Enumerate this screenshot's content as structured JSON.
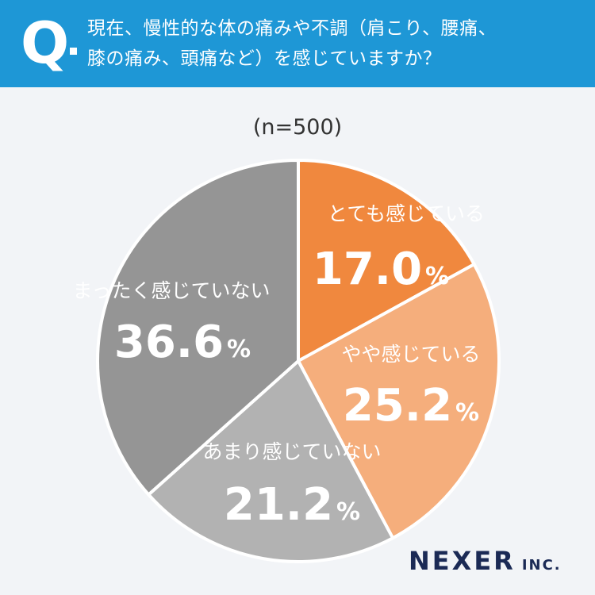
{
  "header": {
    "q_mark": "Q",
    "question_line1": "現在、慢性的な体の痛みや不調（肩こり、腰痛、",
    "question_line2": "膝の痛み、頭痛など）を感じていますか？"
  },
  "sample_size": "(n=500)",
  "chart_data": {
    "type": "pie",
    "title": "現在、慢性的な体の痛みや不調（肩こり、腰痛、膝の痛み、頭痛など）を感じていますか？",
    "categories": [
      "とても感じている",
      "やや感じている",
      "あまり感じていない",
      "まったく感じていない"
    ],
    "values": [
      17.0,
      25.2,
      21.2,
      36.6
    ],
    "value_labels": [
      "17.0",
      "25.2",
      "21.2",
      "36.6"
    ],
    "unit": "%",
    "colors": [
      "#f0883e",
      "#f5ae7c",
      "#b2b2b2",
      "#959595"
    ],
    "start": "12 o'clock",
    "direction": "clockwise"
  },
  "logo": {
    "main": "NEXER",
    "suffix": "INC."
  }
}
